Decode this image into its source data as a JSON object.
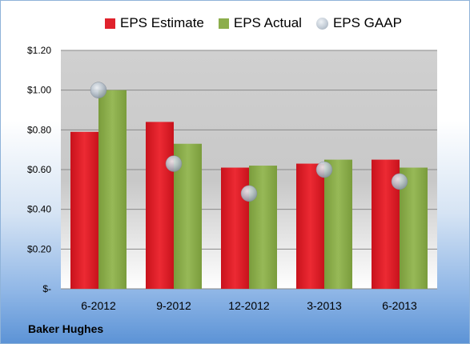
{
  "company": "Baker Hughes",
  "chart_data": {
    "type": "bar",
    "categories": [
      "6-2012",
      "9-2012",
      "12-2012",
      "3-2013",
      "6-2013"
    ],
    "series": [
      {
        "name": "EPS Estimate",
        "values": [
          0.79,
          0.84,
          0.61,
          0.63,
          0.65
        ],
        "color": "#e0222c",
        "mark": "bar"
      },
      {
        "name": "EPS Actual",
        "values": [
          1.0,
          0.73,
          0.62,
          0.65,
          0.61
        ],
        "color": "#8cae4c",
        "mark": "bar"
      },
      {
        "name": "EPS GAAP",
        "values": [
          1.0,
          0.63,
          0.48,
          0.6,
          0.54
        ],
        "color": "#b8c2cd",
        "mark": "marker"
      }
    ],
    "yticks": [
      "$-",
      "$0.20",
      "$0.40",
      "$0.60",
      "$0.80",
      "$1.00",
      "$1.20"
    ],
    "ylim": [
      0,
      1.2
    ],
    "grid": true,
    "legend": "top"
  }
}
